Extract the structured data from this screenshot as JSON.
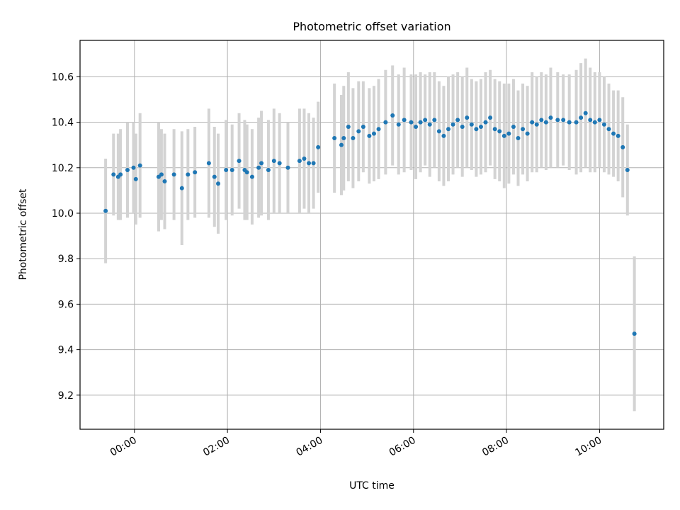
{
  "chart_data": {
    "type": "scatter",
    "title": "Photometric offset variation",
    "xlabel": "UTC time",
    "ylabel": "Photometric offset",
    "x_ticks": [
      "00:00",
      "02:00",
      "04:00",
      "06:00",
      "08:00",
      "10:00"
    ],
    "y_ticks": [
      "9.2",
      "9.4",
      "9.6",
      "9.8",
      "10.0",
      "10.2",
      "10.4",
      "10.6"
    ],
    "x_unit": "hours UTC",
    "xlim": [
      -1.17,
      11.38
    ],
    "ylim": [
      9.05,
      10.76
    ],
    "grid": true,
    "colors": {
      "points": "#1f77b4",
      "errorbars": "#d3d3d3",
      "grid": "#b0b0b0"
    },
    "series": [
      {
        "x": [
          -0.62,
          -0.45,
          -0.35,
          -0.3,
          -0.15,
          -0.02,
          0.03,
          0.12,
          0.52,
          0.58,
          0.65,
          0.85,
          1.02,
          1.15,
          1.3,
          1.6,
          1.72,
          1.8,
          1.97,
          2.1,
          2.25,
          2.37,
          2.42,
          2.53,
          2.67,
          2.73,
          2.88,
          3.0,
          3.12,
          3.3,
          3.55,
          3.65,
          3.75,
          3.85,
          3.95,
          4.3,
          4.45,
          4.5,
          4.6,
          4.7,
          4.82,
          4.92,
          5.05,
          5.15,
          5.25,
          5.4,
          5.55,
          5.68,
          5.8,
          5.95,
          6.05,
          6.15,
          6.25,
          6.35,
          6.45,
          6.55,
          6.65,
          6.75,
          6.85,
          6.95,
          7.05,
          7.15,
          7.25,
          7.35,
          7.45,
          7.55,
          7.65,
          7.75,
          7.85,
          7.95,
          8.05,
          8.15,
          8.25,
          8.35,
          8.45,
          8.55,
          8.65,
          8.75,
          8.85,
          8.95,
          9.1,
          9.22,
          9.35,
          9.5,
          9.6,
          9.7,
          9.8,
          9.9,
          10.0,
          10.1,
          10.2,
          10.3,
          10.4,
          10.5,
          10.6,
          10.75
        ],
        "y": [
          10.01,
          10.17,
          10.16,
          10.17,
          10.19,
          10.2,
          10.15,
          10.21,
          10.16,
          10.17,
          10.14,
          10.17,
          10.11,
          10.17,
          10.18,
          10.22,
          10.16,
          10.13,
          10.19,
          10.19,
          10.23,
          10.19,
          10.18,
          10.16,
          10.2,
          10.22,
          10.19,
          10.23,
          10.22,
          10.2,
          10.23,
          10.24,
          10.22,
          10.22,
          10.29,
          10.33,
          10.3,
          10.33,
          10.38,
          10.33,
          10.36,
          10.38,
          10.34,
          10.35,
          10.37,
          10.4,
          10.43,
          10.39,
          10.41,
          10.4,
          10.38,
          10.4,
          10.41,
          10.39,
          10.41,
          10.36,
          10.34,
          10.37,
          10.39,
          10.41,
          10.38,
          10.42,
          10.39,
          10.37,
          10.38,
          10.4,
          10.42,
          10.37,
          10.36,
          10.34,
          10.35,
          10.38,
          10.33,
          10.37,
          10.35,
          10.4,
          10.39,
          10.41,
          10.4,
          10.42,
          10.41,
          10.41,
          10.4,
          10.4,
          10.42,
          10.44,
          10.41,
          10.4,
          10.41,
          10.39,
          10.37,
          10.35,
          10.34,
          10.29,
          10.19,
          9.47
        ],
        "err": [
          0.23,
          0.18,
          0.19,
          0.2,
          0.21,
          0.2,
          0.2,
          0.23,
          0.24,
          0.2,
          0.21,
          0.2,
          0.25,
          0.2,
          0.2,
          0.24,
          0.22,
          0.22,
          0.22,
          0.2,
          0.21,
          0.22,
          0.21,
          0.21,
          0.22,
          0.23,
          0.22,
          0.23,
          0.22,
          0.2,
          0.23,
          0.22,
          0.22,
          0.2,
          0.2,
          0.24,
          0.22,
          0.23,
          0.24,
          0.22,
          0.22,
          0.2,
          0.21,
          0.21,
          0.22,
          0.23,
          0.22,
          0.22,
          0.23,
          0.21,
          0.23,
          0.22,
          0.2,
          0.23,
          0.21,
          0.22,
          0.22,
          0.23,
          0.22,
          0.21,
          0.22,
          0.22,
          0.2,
          0.21,
          0.21,
          0.22,
          0.21,
          0.22,
          0.22,
          0.23,
          0.22,
          0.21,
          0.21,
          0.2,
          0.21,
          0.22,
          0.21,
          0.21,
          0.21,
          0.22,
          0.21,
          0.2,
          0.21,
          0.23,
          0.24,
          0.24,
          0.23,
          0.22,
          0.21,
          0.21,
          0.2,
          0.19,
          0.2,
          0.22,
          0.2,
          0.34
        ]
      }
    ]
  }
}
